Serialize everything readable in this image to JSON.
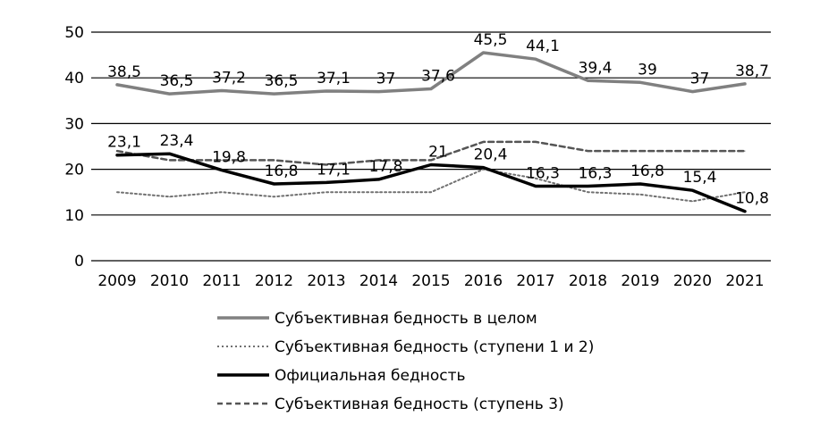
{
  "chart_data": {
    "type": "line",
    "categories": [
      "2009",
      "2010",
      "2011",
      "2012",
      "2013",
      "2014",
      "2015",
      "2016",
      "2017",
      "2018",
      "2019",
      "2020",
      "2021"
    ],
    "ylim": [
      0,
      50
    ],
    "yticks": [
      0,
      10,
      20,
      30,
      40,
      50
    ],
    "grid": true,
    "legend_position": "bottom",
    "series": [
      {
        "name": "Субъективная бедность в целом",
        "color": "#808080",
        "style": "solid",
        "values": [
          38.5,
          36.5,
          37.2,
          36.5,
          37.1,
          37,
          37.6,
          45.5,
          44.1,
          39.4,
          39,
          37,
          38.7
        ],
        "labels": [
          "38,5",
          "36,5",
          "37,2",
          "36,5",
          "37,1",
          "37",
          "37,6",
          "45,5",
          "44,1",
          "39,4",
          "39",
          "37",
          "38,7"
        ]
      },
      {
        "name": "Субъективная бедность (ступени 1 и 2)",
        "color": "#707070",
        "style": "dotted",
        "values": [
          15,
          14,
          15,
          14,
          15,
          15,
          15,
          20,
          18,
          15,
          14.5,
          13,
          15
        ]
      },
      {
        "name": "Официальная бедность",
        "color": "#000000",
        "style": "solid",
        "values": [
          23.1,
          23.4,
          19.8,
          16.8,
          17.1,
          17.8,
          21,
          20.4,
          16.3,
          16.3,
          16.8,
          15.4,
          10.8
        ],
        "labels": [
          "23,1",
          "23,4",
          "19,8",
          "16,8",
          "17,1",
          "17,8",
          "21",
          "20,4",
          "16,3",
          "16,3",
          "16,8",
          "15,4",
          "10,8"
        ]
      },
      {
        "name": "Субъективная бедность (ступень 3)",
        "color": "#555555",
        "style": "dashed",
        "values": [
          24,
          22,
          22,
          22,
          21,
          22,
          22,
          26,
          26,
          24,
          24,
          24,
          24
        ]
      }
    ]
  }
}
